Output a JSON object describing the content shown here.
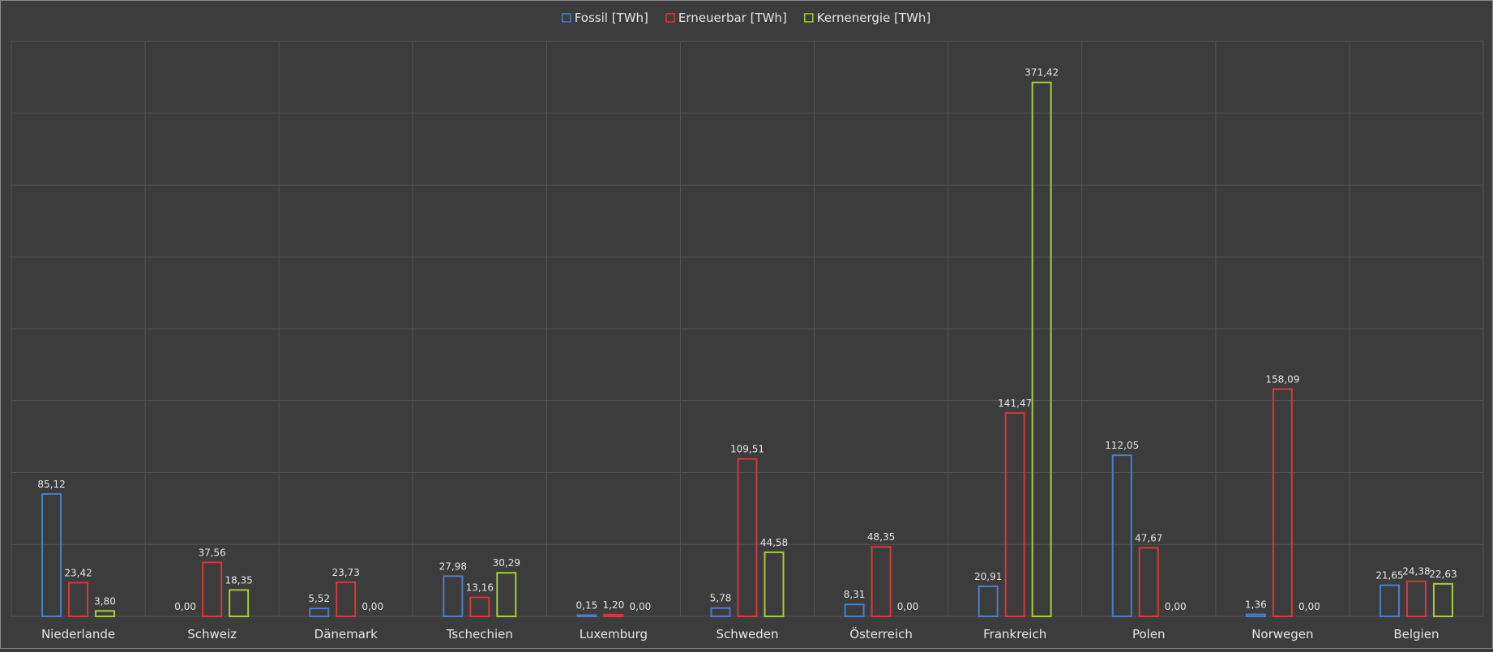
{
  "chart_data": {
    "type": "bar",
    "title": "",
    "xlabel": "",
    "ylabel": "",
    "ylim": [
      0,
      400
    ],
    "grid": true,
    "legend_position": "top",
    "categories": [
      "Niederlande",
      "Schweiz",
      "Dänemark",
      "Tschechien",
      "Luxemburg",
      "Schweden",
      "Österreich",
      "Frankreich",
      "Polen",
      "Norwegen",
      "Belgien"
    ],
    "series": [
      {
        "name": "Fossil [TWh]",
        "color": "#4a7fc8",
        "values": [
          85.12,
          0.0,
          5.52,
          27.98,
          0.15,
          5.78,
          8.31,
          20.91,
          112.05,
          1.36,
          21.65
        ],
        "labels": [
          "85,12",
          "0,00",
          "5,52",
          "27,98",
          "0,15",
          "5,78",
          "8,31",
          "20,91",
          "112,05",
          "1,36",
          "21,65"
        ]
      },
      {
        "name": "Erneuerbar [TWh]",
        "color": "#d8383c",
        "values": [
          23.42,
          37.56,
          23.73,
          13.16,
          1.2,
          109.51,
          48.35,
          141.47,
          47.67,
          158.09,
          24.38
        ],
        "labels": [
          "23,42",
          "37,56",
          "23,73",
          "13,16",
          "1,20",
          "109,51",
          "48,35",
          "141,47",
          "47,67",
          "158,09",
          "24,38"
        ]
      },
      {
        "name": "Kernenergie [TWh]",
        "color": "#a8cc3c",
        "values": [
          3.8,
          18.35,
          0.0,
          30.29,
          0.0,
          44.58,
          0.0,
          371.42,
          0.0,
          0.0,
          22.63
        ],
        "labels": [
          "3,80",
          "18,35",
          "0,00",
          "30,29",
          "0,00",
          "44,58",
          "0,00",
          "371,42",
          "0,00",
          "0,00",
          "22,63"
        ]
      }
    ]
  },
  "colors": {
    "background": "#3c3c3c",
    "grid": "#555555",
    "text": "#e6e6e6"
  }
}
